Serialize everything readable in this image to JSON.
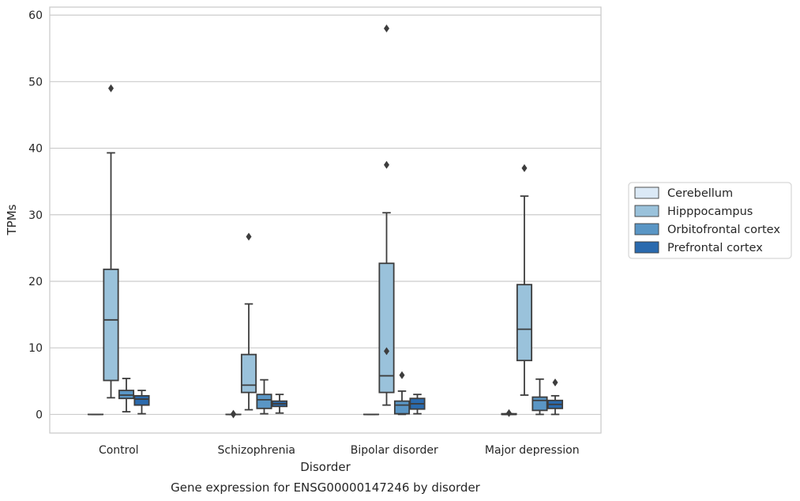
{
  "chart_data": {
    "type": "box",
    "title": "Gene expression for ENSG00000147246 by disorder",
    "xlabel": "Disorder",
    "ylabel": "TPMs",
    "ylim": [
      -2.8,
      61.2
    ],
    "yticks": [
      0,
      10,
      20,
      30,
      40,
      50,
      60
    ],
    "grid": "horizontal",
    "legend_position": "right",
    "categories": [
      "Control",
      "Schizophrenia",
      "Bipolar disorder",
      "Major depression"
    ],
    "series": [
      {
        "name": "Cerebellum",
        "color": "#dbe9f6",
        "boxes": [
          {
            "min": 0,
            "q1": 0,
            "median": 0,
            "q3": 0,
            "max": 0,
            "outliers": []
          },
          {
            "min": 0,
            "q1": 0,
            "median": 0,
            "q3": 0,
            "max": 0,
            "outliers": [
              0.1,
              0.0
            ]
          },
          {
            "min": 0,
            "q1": 0,
            "median": 0,
            "q3": 0,
            "max": 0,
            "outliers": []
          },
          {
            "min": 0,
            "q1": 0,
            "median": 0,
            "q3": 0.1,
            "max": 0.1,
            "outliers": [
              0.2
            ]
          }
        ]
      },
      {
        "name": "Hipppocampus",
        "color": "#9ac2db",
        "boxes": [
          {
            "min": 2.5,
            "q1": 5.1,
            "median": 14.2,
            "q3": 21.8,
            "max": 39.3,
            "outliers": [
              49.0
            ]
          },
          {
            "min": 0.7,
            "q1": 3.3,
            "median": 4.4,
            "q3": 9.0,
            "max": 16.6,
            "outliers": [
              26.7
            ]
          },
          {
            "min": 1.4,
            "q1": 3.3,
            "median": 5.8,
            "q3": 22.7,
            "max": 30.3,
            "outliers": [
              58.0,
              37.5,
              9.5
            ]
          },
          {
            "min": 2.9,
            "q1": 8.1,
            "median": 12.8,
            "q3": 19.5,
            "max": 32.8,
            "outliers": [
              37.0
            ]
          }
        ]
      },
      {
        "name": "Orbitofrontal cortex",
        "color": "#5a96c5",
        "boxes": [
          {
            "min": 0.4,
            "q1": 2.4,
            "median": 2.9,
            "q3": 3.6,
            "max": 5.4,
            "outliers": []
          },
          {
            "min": 0.1,
            "q1": 0.9,
            "median": 2.2,
            "q3": 3.0,
            "max": 5.2,
            "outliers": []
          },
          {
            "min": 0.0,
            "q1": 0.1,
            "median": 1.4,
            "q3": 2.0,
            "max": 3.5,
            "outliers": [
              5.9
            ]
          },
          {
            "min": 0.0,
            "q1": 0.6,
            "median": 2.1,
            "q3": 2.6,
            "max": 5.3,
            "outliers": []
          }
        ]
      },
      {
        "name": "Prefrontal cortex",
        "color": "#2a6aae",
        "boxes": [
          {
            "min": 0.1,
            "q1": 1.4,
            "median": 2.3,
            "q3": 2.8,
            "max": 3.6,
            "outliers": []
          },
          {
            "min": 0.2,
            "q1": 1.2,
            "median": 1.6,
            "q3": 2.0,
            "max": 3.0,
            "outliers": []
          },
          {
            "min": 0.1,
            "q1": 0.8,
            "median": 1.6,
            "q3": 2.4,
            "max": 3.0,
            "outliers": []
          },
          {
            "min": 0.0,
            "q1": 0.9,
            "median": 1.5,
            "q3": 2.1,
            "max": 2.8,
            "outliers": [
              4.8
            ]
          }
        ]
      }
    ]
  }
}
